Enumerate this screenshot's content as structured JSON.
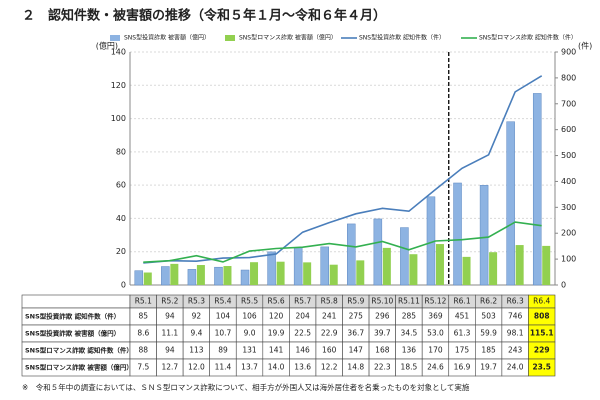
{
  "chart_data": {
    "type": "bar",
    "title": "２　認知件数・被害額の推移（令和５年１月～令和６年４月）",
    "ylabel": "(億円)",
    "y2label": "(件)",
    "categories": [
      "R5.1",
      "R5.2",
      "R5.3",
      "R5.4",
      "R5.5",
      "R5.6",
      "R5.7",
      "R5.8",
      "R5.9",
      "R5.10",
      "R5.11",
      "R5.12",
      "R6.1",
      "R6.2",
      "R6.3",
      "R6.4"
    ],
    "ylim": [
      0,
      140
    ],
    "yticks": [
      0,
      20,
      40,
      60,
      80,
      100,
      120,
      140
    ],
    "y2lim": [
      0,
      900
    ],
    "y2ticks": [
      0,
      100,
      200,
      300,
      400,
      500,
      600,
      700,
      800,
      900
    ],
    "series": [
      {
        "name": "SNS型投資詐欺 被害額（億円）",
        "type": "bar",
        "axis": "y",
        "color": "#8db3e2",
        "values": [
          8.6,
          11.1,
          9.4,
          10.7,
          9.0,
          19.9,
          22.5,
          22.9,
          36.7,
          39.7,
          34.5,
          53.0,
          61.3,
          59.9,
          98.1,
          115.1
        ],
        "value_labels": [
          "8.6",
          "11.1",
          "9.4",
          "10.7",
          "9.0",
          "19.9",
          "22.5",
          "22.9",
          "36.7",
          "39.7",
          "34.5",
          "53.0",
          "61.3",
          "59.9",
          "98.1",
          "115.1"
        ]
      },
      {
        "name": "SNS型ロマンス詐欺 被害額（億円）",
        "type": "bar",
        "axis": "y",
        "color": "#92d050",
        "values": [
          7.5,
          12.7,
          12.0,
          11.4,
          13.7,
          14.0,
          13.6,
          12.2,
          14.8,
          22.3,
          18.5,
          24.6,
          16.9,
          19.7,
          24.0,
          23.5
        ],
        "value_labels": [
          "7.5",
          "12.7",
          "12.0",
          "11.4",
          "13.7",
          "14.0",
          "13.6",
          "12.2",
          "14.8",
          "22.3",
          "18.5",
          "24.6",
          "16.9",
          "19.7",
          "24.0",
          "23.5"
        ]
      },
      {
        "name": "SNS型投資詐欺 認知件数（件）",
        "type": "line",
        "axis": "y2",
        "color": "#4a7ebb",
        "values": [
          85,
          94,
          92,
          104,
          106,
          120,
          204,
          241,
          275,
          296,
          285,
          369,
          451,
          503,
          746,
          808
        ]
      },
      {
        "name": "SNS型ロマンス詐欺 認知件数（件）",
        "type": "line",
        "axis": "y2",
        "color": "#33b050",
        "values": [
          88,
          94,
          113,
          89,
          131,
          141,
          146,
          160,
          147,
          168,
          136,
          170,
          175,
          185,
          243,
          229
        ]
      }
    ],
    "footnote": "※　令和５年中の調査においては、ＳＮＳ型ロマンス詐欺について、相手方が外国人又は海外居住者を名乗ったものを対象として実施"
  }
}
